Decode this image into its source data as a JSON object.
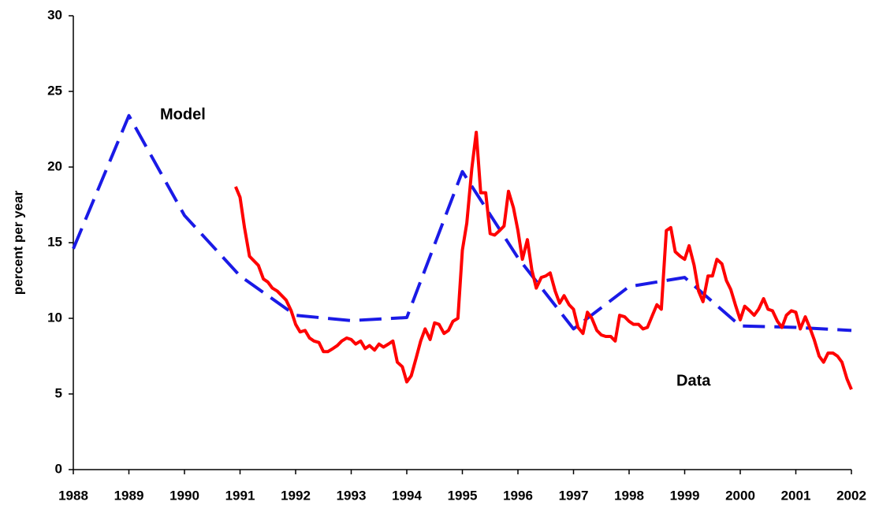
{
  "chart_data": {
    "type": "line",
    "y_label": "percent per year",
    "annotations": [
      "Model",
      "Data"
    ],
    "xlim": [
      1988,
      2002
    ],
    "xticks": [
      1988,
      1989,
      1990,
      1991,
      1992,
      1993,
      1994,
      1995,
      1996,
      1997,
      1998,
      1999,
      2000,
      2001,
      2002
    ],
    "ylim": [
      0,
      30
    ],
    "yticks": [
      0,
      5,
      10,
      15,
      20,
      25,
      30
    ],
    "grid": false,
    "series": [
      {
        "name": "Model",
        "color": "#1a1ae6",
        "dashed": true,
        "x": [
          1988,
          1989,
          1990,
          1991,
          1992,
          1993,
          1994,
          1995,
          1996,
          1997,
          1998,
          1999,
          2000,
          2001,
          2002
        ],
        "values": [
          14.6,
          23.4,
          16.8,
          12.8,
          10.2,
          9.85,
          10.05,
          19.7,
          14.0,
          9.3,
          12.1,
          12.7,
          9.5,
          9.4,
          9.2
        ]
      },
      {
        "name": "Data",
        "color": "#ff0000",
        "dashed": false,
        "x": [
          1990.92,
          1991.0,
          1991.08,
          1991.17,
          1991.25,
          1991.33,
          1991.42,
          1991.5,
          1991.58,
          1991.67,
          1991.75,
          1991.83,
          1991.92,
          1992.0,
          1992.08,
          1992.17,
          1992.25,
          1992.33,
          1992.42,
          1992.5,
          1992.58,
          1992.67,
          1992.75,
          1992.83,
          1992.92,
          1993.0,
          1993.08,
          1993.17,
          1993.25,
          1993.33,
          1993.42,
          1993.5,
          1993.58,
          1993.67,
          1993.75,
          1993.83,
          1993.92,
          1994.0,
          1994.08,
          1994.17,
          1994.25,
          1994.33,
          1994.42,
          1994.5,
          1994.58,
          1994.67,
          1994.75,
          1994.83,
          1994.92,
          1995.0,
          1995.08,
          1995.17,
          1995.25,
          1995.33,
          1995.42,
          1995.5,
          1995.58,
          1995.67,
          1995.75,
          1995.83,
          1995.92,
          1996.0,
          1996.08,
          1996.17,
          1996.25,
          1996.33,
          1996.42,
          1996.5,
          1996.58,
          1996.67,
          1996.75,
          1996.83,
          1996.92,
          1997.0,
          1997.08,
          1997.17,
          1997.25,
          1997.33,
          1997.42,
          1997.5,
          1997.58,
          1997.67,
          1997.75,
          1997.83,
          1997.92,
          1998.0,
          1998.08,
          1998.17,
          1998.25,
          1998.33,
          1998.42,
          1998.5,
          1998.58,
          1998.67,
          1998.75,
          1998.83,
          1998.92,
          1999.0,
          1999.08,
          1999.17,
          1999.25,
          1999.33,
          1999.42,
          1999.5,
          1999.58,
          1999.67,
          1999.75,
          1999.83,
          1999.92,
          2000.0,
          2000.08,
          2000.17,
          2000.25,
          2000.33,
          2000.42,
          2000.5,
          2000.58,
          2000.67,
          2000.75,
          2000.83,
          2000.92,
          2001.0,
          2001.08,
          2001.17,
          2001.25,
          2001.33,
          2001.42,
          2001.5,
          2001.58,
          2001.67,
          2001.75,
          2001.83,
          2001.92,
          2002.0
        ],
        "values": [
          18.7,
          18.0,
          16.0,
          14.1,
          13.8,
          13.5,
          12.6,
          12.4,
          12.0,
          11.8,
          11.5,
          11.2,
          10.5,
          9.6,
          9.1,
          9.2,
          8.7,
          8.5,
          8.4,
          7.8,
          7.8,
          8.0,
          8.2,
          8.5,
          8.7,
          8.6,
          8.3,
          8.5,
          8.0,
          8.2,
          7.9,
          8.3,
          8.1,
          8.3,
          8.5,
          7.1,
          6.8,
          5.8,
          6.2,
          7.4,
          8.5,
          9.3,
          8.6,
          9.7,
          9.6,
          9.0,
          9.2,
          9.8,
          10.0,
          14.5,
          16.3,
          19.9,
          22.3,
          18.3,
          18.3,
          15.6,
          15.5,
          15.8,
          16.1,
          18.4,
          17.3,
          15.8,
          13.9,
          15.2,
          13.2,
          12.0,
          12.7,
          12.8,
          13.0,
          11.8,
          11.0,
          11.5,
          10.9,
          10.6,
          9.4,
          9.0,
          10.4,
          10.0,
          9.2,
          8.9,
          8.8,
          8.8,
          8.5,
          10.2,
          10.1,
          9.8,
          9.6,
          9.6,
          9.3,
          9.4,
          10.2,
          10.9,
          10.6,
          15.8,
          16.0,
          14.4,
          14.1,
          13.9,
          14.8,
          13.5,
          11.8,
          11.1,
          12.8,
          12.8,
          13.9,
          13.6,
          12.5,
          11.9,
          10.8,
          9.9,
          10.8,
          10.5,
          10.2,
          10.6,
          11.3,
          10.6,
          10.5,
          9.8,
          9.4,
          10.2,
          10.5,
          10.4,
          9.3,
          10.1,
          9.4,
          8.6,
          7.5,
          7.1,
          7.7,
          7.7,
          7.5,
          7.1,
          6.0,
          5.3
        ]
      }
    ]
  }
}
